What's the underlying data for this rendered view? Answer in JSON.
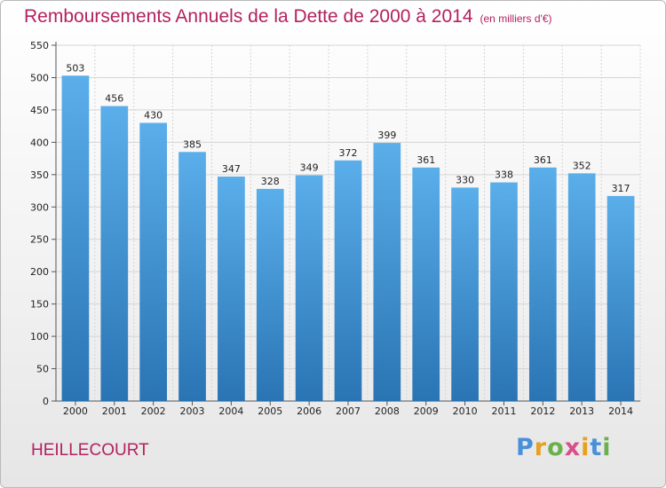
{
  "title": "Remboursements Annuels de la Dette de 2000 à 2014",
  "subtitle": "(en milliers d'€)",
  "location": "HEILLECOURT",
  "logo": {
    "text": "Proxiti",
    "letters": [
      {
        "ch": "P",
        "color": "#4a90d9"
      },
      {
        "ch": "r",
        "color": "#e8a020"
      },
      {
        "ch": "o",
        "color": "#6ab04c"
      },
      {
        "ch": "x",
        "color": "#d94f8a"
      },
      {
        "ch": "i",
        "color": "#e8a020"
      },
      {
        "ch": "t",
        "color": "#4a90d9"
      },
      {
        "ch": "i",
        "color": "#6ab04c"
      }
    ]
  },
  "colors": {
    "title": "#b3215f",
    "bar_top": "#5aaeea",
    "bar_bottom": "#2a74b4",
    "grid": "#d5d5d5",
    "axis": "#555555"
  },
  "chart_data": {
    "type": "bar",
    "categories": [
      "2000",
      "2001",
      "2002",
      "2003",
      "2004",
      "2005",
      "2006",
      "2007",
      "2008",
      "2009",
      "2010",
      "2011",
      "2012",
      "2013",
      "2014"
    ],
    "values": [
      503,
      456,
      430,
      385,
      347,
      328,
      349,
      372,
      399,
      361,
      330,
      338,
      361,
      352,
      317
    ],
    "ylim": [
      0,
      550
    ],
    "yticks": [
      0,
      50,
      100,
      150,
      200,
      250,
      300,
      350,
      400,
      450,
      500,
      550
    ],
    "grid": true,
    "xlabel": "",
    "ylabel": ""
  }
}
